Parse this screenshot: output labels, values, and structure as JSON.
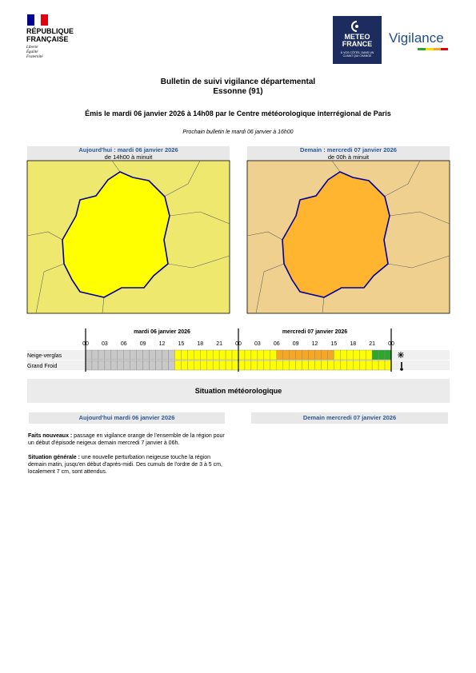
{
  "header": {
    "republic": {
      "line1": "RÉPUBLIQUE",
      "line2": "FRANÇAISE",
      "motto": [
        "Liberté",
        "Égalité",
        "Fraternité"
      ]
    },
    "meteo": {
      "line1": "METEO",
      "line2": "FRANCE",
      "tagline": "À VOS CÔTÉS, DANS UN CLIMAT QUI CHANGE"
    },
    "vigilance": "Vigilance"
  },
  "title": {
    "line1": "Bulletin de suivi vigilance départemental",
    "line2": "Essonne (91)"
  },
  "issued": "Émis le mardi 06 janvier 2026 à 14h08 par le Centre météorologique interrégional de Paris",
  "next": "Prochain bulletin le mardi 06 janvier à 16h00",
  "maps": [
    {
      "heading": "Aujourd'hui : mardi 06 janvier 2026",
      "period": "de 14h00 à minuit",
      "background": "#efe86e",
      "fill": "#ffff00"
    },
    {
      "heading": "Demain : mercredi 07 janvier 2026",
      "period": "de 00h à minuit",
      "background": "#f0d08e",
      "fill": "#ffb530"
    }
  ],
  "timeline": {
    "days": [
      "mardi 06 janvier 2026",
      "mercredi 07 janvier 2026"
    ],
    "hours": [
      "00",
      "03",
      "06",
      "09",
      "12",
      "15",
      "18",
      "21",
      "00",
      "03",
      "06",
      "09",
      "12",
      "15",
      "18",
      "21",
      "00"
    ],
    "rows": [
      {
        "label": "Neige-verglas",
        "cells": [
          "#c8c8c8",
          "#c8c8c8",
          "#c8c8c8",
          "#c8c8c8",
          "#c8c8c8",
          "#c8c8c8",
          "#c8c8c8",
          "#c8c8c8",
          "#c8c8c8",
          "#c8c8c8",
          "#c8c8c8",
          "#c8c8c8",
          "#c8c8c8",
          "#c8c8c8",
          "#ffff00",
          "#ffff00",
          "#ffff00",
          "#ffff00",
          "#ffff00",
          "#ffff00",
          "#ffff00",
          "#ffff00",
          "#ffff00",
          "#ffff00",
          "#ffff00",
          "#ffff00",
          "#ffff00",
          "#ffff00",
          "#ffff00",
          "#ffff00",
          "#f5a623",
          "#f5a623",
          "#f5a623",
          "#f5a623",
          "#f5a623",
          "#f5a623",
          "#f5a623",
          "#f5a623",
          "#f5a623",
          "#ffff00",
          "#ffff00",
          "#ffff00",
          "#ffff00",
          "#ffff00",
          "#ffff00",
          "#2ea62e",
          "#2ea62e",
          "#2ea62e"
        ]
      },
      {
        "label": "Grand Froid",
        "cells": [
          "#c8c8c8",
          "#c8c8c8",
          "#c8c8c8",
          "#c8c8c8",
          "#c8c8c8",
          "#c8c8c8",
          "#c8c8c8",
          "#c8c8c8",
          "#c8c8c8",
          "#c8c8c8",
          "#c8c8c8",
          "#c8c8c8",
          "#c8c8c8",
          "#c8c8c8",
          "#ffff00",
          "#ffff00",
          "#ffff00",
          "#ffff00",
          "#ffff00",
          "#ffff00",
          "#ffff00",
          "#ffff00",
          "#ffff00",
          "#ffff00",
          "#ffff00",
          "#ffff00",
          "#ffff00",
          "#ffff00",
          "#ffff00",
          "#ffff00",
          "#ffff00",
          "#ffff00",
          "#ffff00",
          "#ffff00",
          "#ffff00",
          "#ffff00",
          "#ffff00",
          "#ffff00",
          "#ffff00",
          "#ffff00",
          "#ffff00",
          "#ffff00",
          "#ffff00",
          "#ffff00",
          "#ffff00",
          "#ffff00",
          "#ffff00",
          "#ffff00"
        ]
      }
    ]
  },
  "situation": {
    "title": "Situation météorologique",
    "columns": [
      "Aujourd'hui mardi 06 janvier 2026",
      "Demain mercredi 07 janvier 2026"
    ],
    "paragraphs": [
      {
        "lead": "Faits nouveaux :",
        "text": " passage en vigilance orange de l'ensemble de la région pour un début d'épisode neigeux demain mercredi 7 janvier à 06h."
      },
      {
        "lead": "Situation générale :",
        "text": " une nouvelle perturbation neigeuse touche la région demain matin, jusqu'en début d'après-midi. Des cumuls de l'ordre de 3 à 5 cm, localement 7 cm, sont attendus."
      }
    ]
  }
}
